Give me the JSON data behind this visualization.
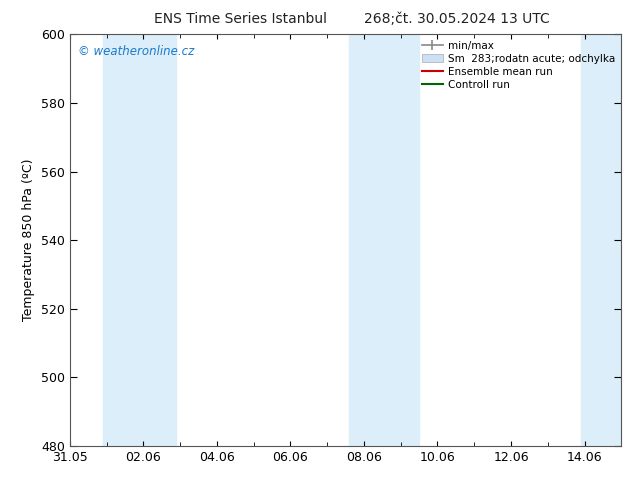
{
  "title_left": "ENS Time Series Istanbul",
  "title_right": "268;čt. 30.05.2024 13 UTC",
  "ylabel": "Temperature 850 hPa (ºC)",
  "xlim": [
    0,
    15
  ],
  "ylim": [
    480,
    600
  ],
  "yticks": [
    480,
    500,
    520,
    540,
    560,
    580,
    600
  ],
  "xtick_labels": [
    "31.05",
    "02.06",
    "04.06",
    "06.06",
    "08.06",
    "10.06",
    "12.06",
    "14.06"
  ],
  "xtick_positions": [
    0,
    2,
    4,
    6,
    8,
    10,
    12,
    14
  ],
  "minor_xtick_positions": [
    1,
    3,
    5,
    7,
    9,
    11,
    13
  ],
  "shaded_bands": [
    {
      "x_start": 0.9,
      "x_end": 2.9
    },
    {
      "x_start": 7.6,
      "x_end": 9.5
    },
    {
      "x_start": 13.9,
      "x_end": 15.0
    }
  ],
  "shaded_color": "#dceef9",
  "watermark_text": "© weatheronline.cz",
  "watermark_color": "#1a7acc",
  "legend_entries": [
    {
      "label": "min/max",
      "color": "#888888",
      "lw": 1.2,
      "type": "minmax"
    },
    {
      "label": "Sm  283;rodatn acute; odchylka",
      "color": "#cce0f5",
      "lw": 6,
      "type": "band"
    },
    {
      "label": "Ensemble mean run",
      "color": "#cc0000",
      "lw": 1.5,
      "type": "line"
    },
    {
      "label": "Controll run",
      "color": "#006600",
      "lw": 1.5,
      "type": "line"
    }
  ],
  "bg_color": "#ffffff",
  "spine_color": "#555555",
  "font_size": 9,
  "title_font_size": 10,
  "ylabel_font_size": 9
}
